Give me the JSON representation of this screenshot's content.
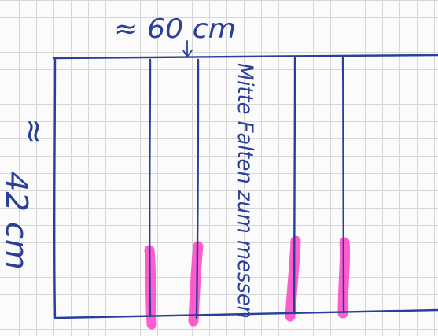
{
  "annotations": {
    "width_label": "≈ 60 cm",
    "height_approx": "≈",
    "height_label": "42 cm",
    "vertical_note": "Mitte Falten zum messen"
  },
  "colors": {
    "paper": "#fbfbfb",
    "grid": "#d7d7d7",
    "ink": "#2a3f9a",
    "highlighter": "#ff3fc4"
  },
  "fold_marks": {
    "count": 4
  }
}
